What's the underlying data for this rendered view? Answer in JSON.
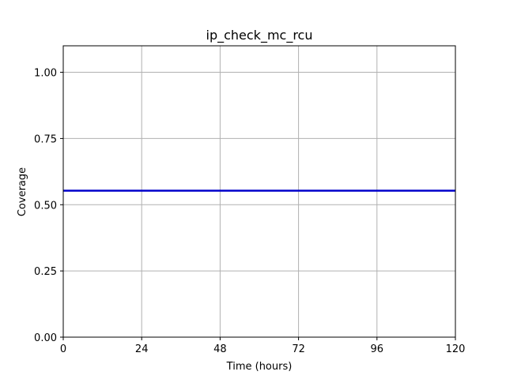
{
  "chart_data": {
    "type": "line",
    "title": "ip_check_mc_rcu",
    "xlabel": "Time (hours)",
    "ylabel": "Coverage",
    "xlim": [
      0,
      120
    ],
    "ylim": [
      0,
      1.1
    ],
    "xticks": [
      0,
      24,
      48,
      72,
      96,
      120
    ],
    "yticks": [
      0.0,
      0.25,
      0.5,
      0.75,
      1.0
    ],
    "xtick_labels": [
      "0",
      "24",
      "48",
      "72",
      "96",
      "120"
    ],
    "ytick_labels": [
      "0.00",
      "0.25",
      "0.50",
      "0.75",
      "1.00"
    ],
    "grid": true,
    "series": [
      {
        "color": "#0000cc",
        "x": [
          0,
          120
        ],
        "y": [
          0.553,
          0.553
        ]
      }
    ]
  }
}
